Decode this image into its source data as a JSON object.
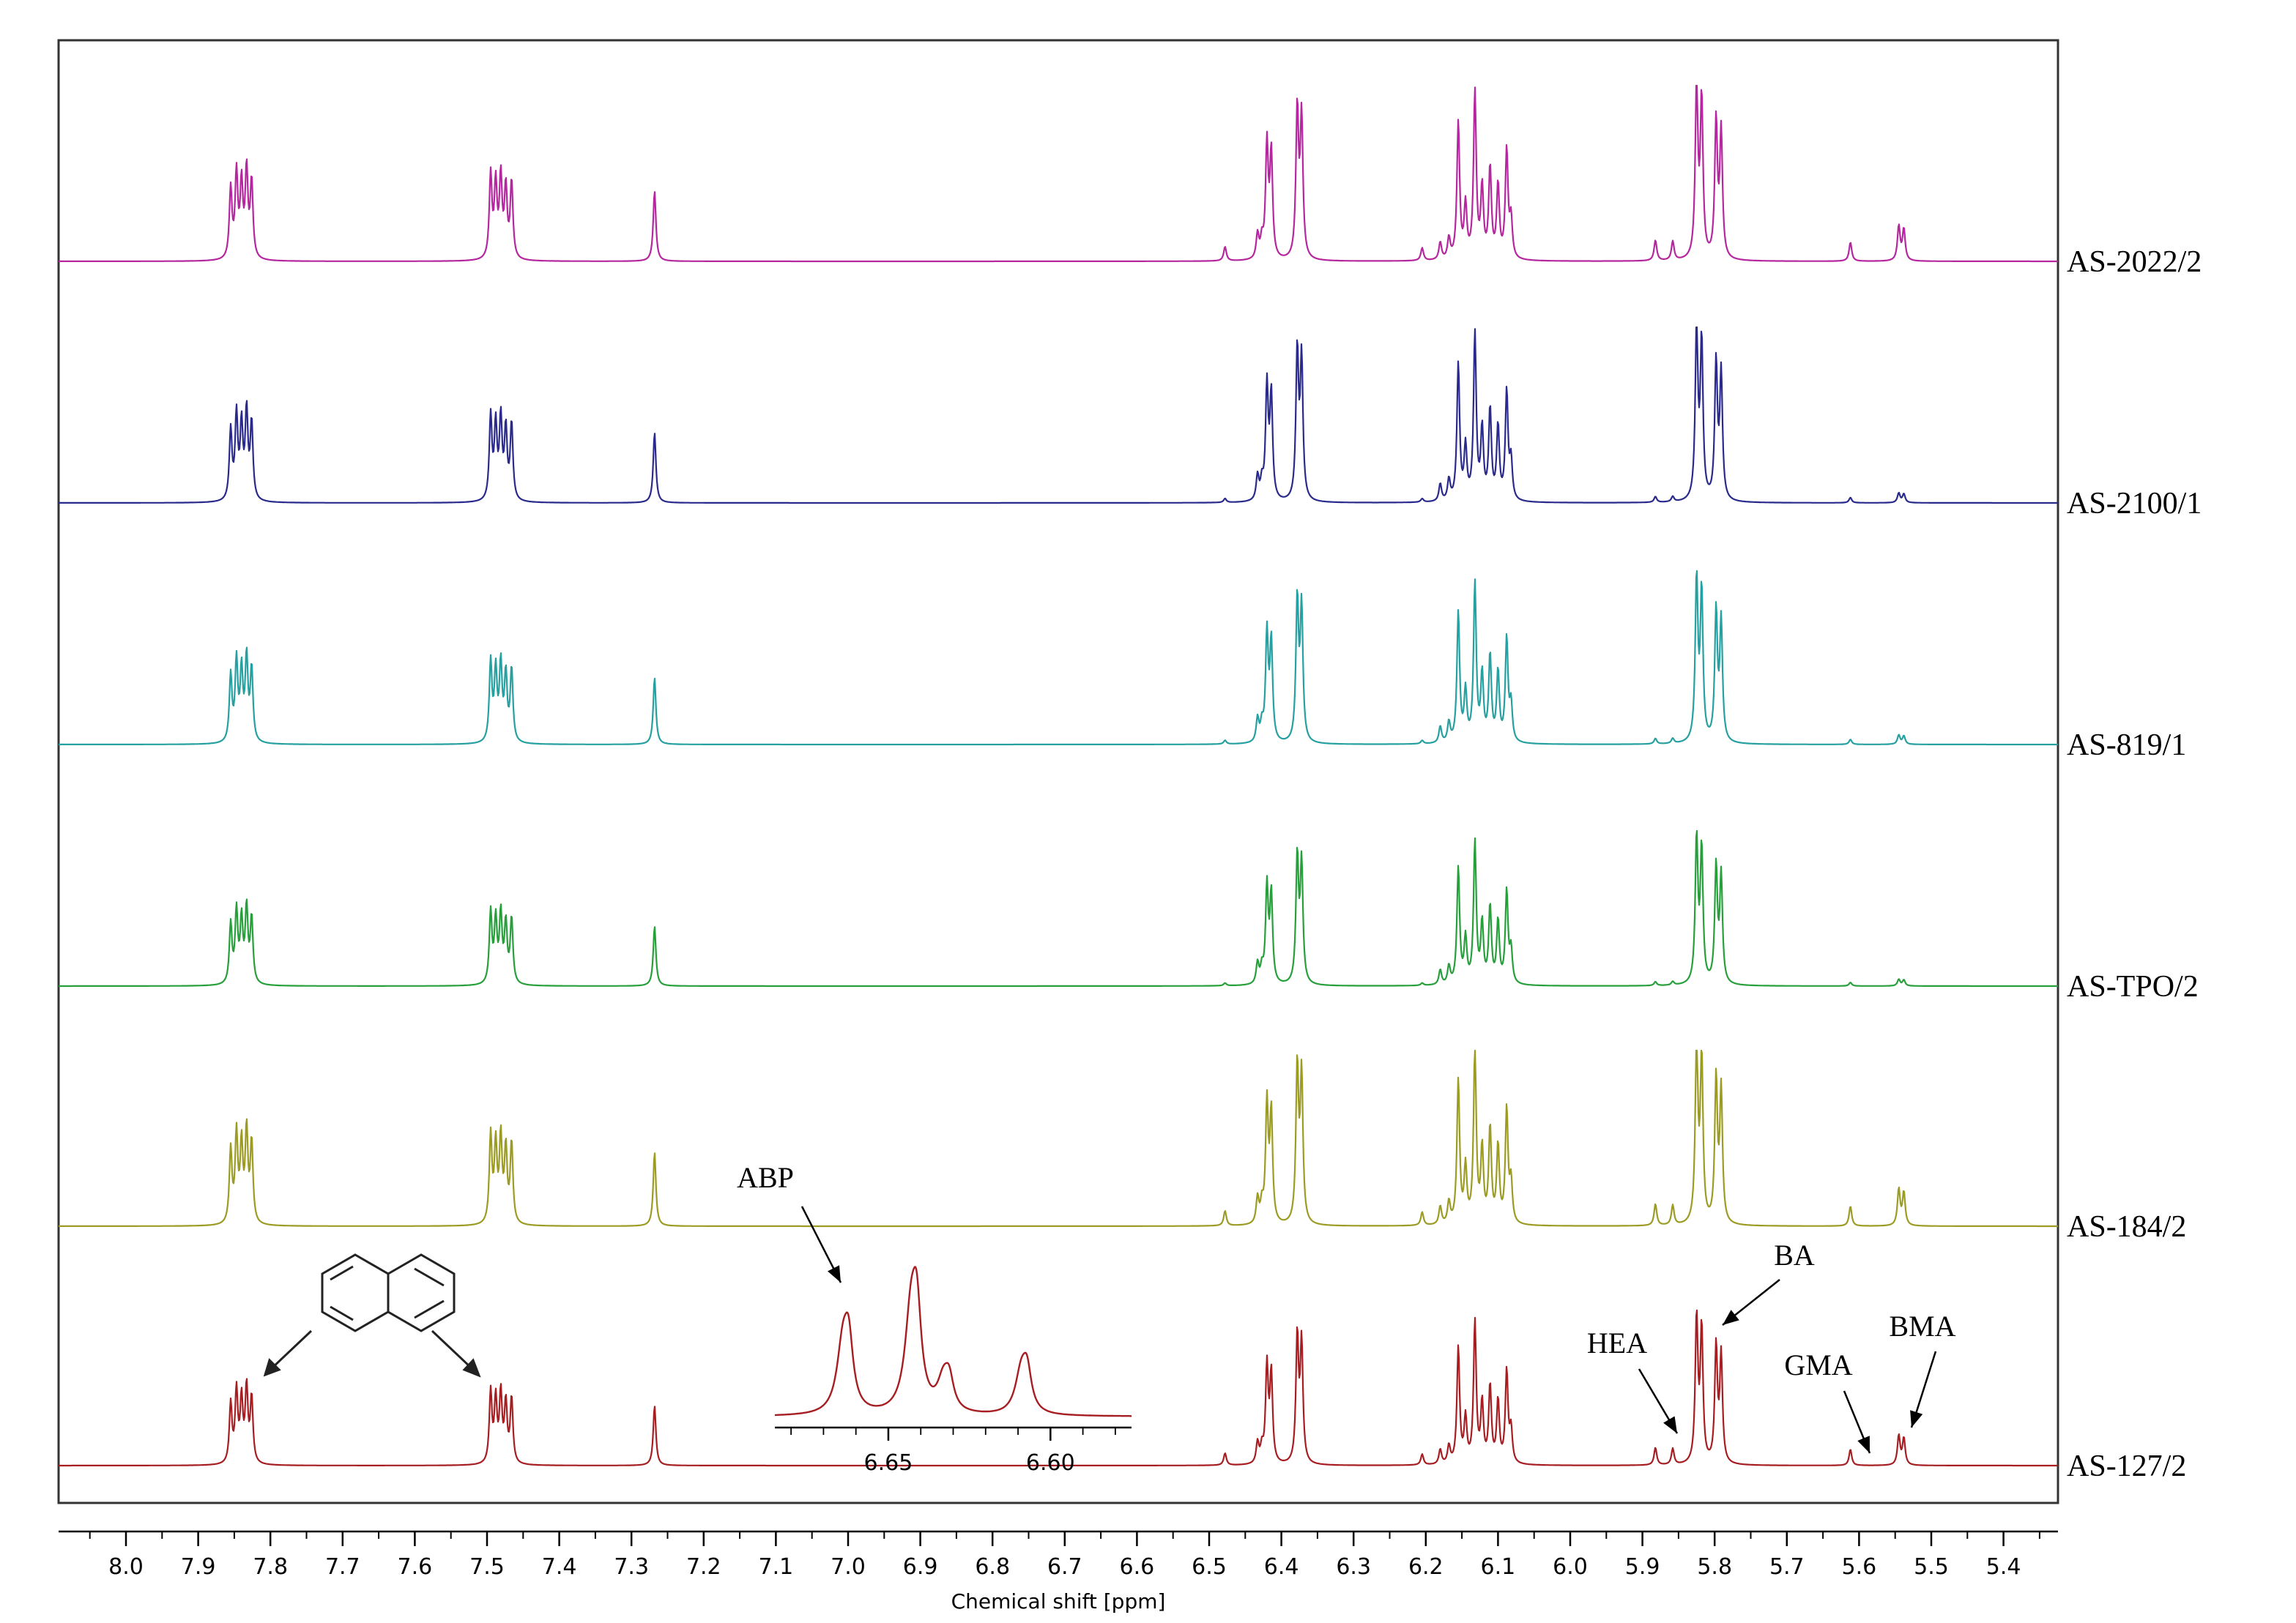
{
  "chart_data": {
    "type": "line",
    "title": "",
    "xlabel": "Chemical shift [ppm]",
    "ylabel": "",
    "xlim": [
      8.1,
      5.36
    ],
    "x_reversed": true,
    "grid": false,
    "x_ticks": [
      "8.0",
      "7.9",
      "7.8",
      "7.7",
      "7.6",
      "7.5",
      "7.4",
      "7.3",
      "7.2",
      "7.1",
      "7.0",
      "6.9",
      "6.8",
      "6.7",
      "6.6",
      "6.5",
      "6.4",
      "6.3",
      "6.2",
      "6.1",
      "6.0",
      "5.9",
      "5.8",
      "5.7",
      "5.6",
      "5.5",
      "5.4"
    ],
    "series": [
      {
        "name": "AS-2022/2",
        "color": "#b5279f",
        "scale": 1.0,
        "small_peaks": 0.9
      },
      {
        "name": "AS-2100/1",
        "color": "#2a2a8c",
        "scale": 1.0,
        "small_peaks": 0.25
      },
      {
        "name": "AS-819/1",
        "color": "#26a0a0",
        "scale": 0.95,
        "small_peaks": 0.25
      },
      {
        "name": "AS-TPO/2",
        "color": "#27a03c",
        "scale": 0.85,
        "small_peaks": 0.2
      },
      {
        "name": "AS-184/2",
        "color": "#9c9c25",
        "scale": 1.05,
        "small_peaks": 0.9
      },
      {
        "name": "AS-127/2",
        "color": "#a61e22",
        "scale": 0.85,
        "small_peaks": 0.9
      }
    ],
    "peaks": [
      {
        "ppm": 7.855,
        "h": 0.4
      },
      {
        "ppm": 7.847,
        "h": 0.48
      },
      {
        "ppm": 7.84,
        "h": 0.42
      },
      {
        "ppm": 7.833,
        "h": 0.5
      },
      {
        "ppm": 7.826,
        "h": 0.44
      },
      {
        "ppm": 7.495,
        "h": 0.48
      },
      {
        "ppm": 7.488,
        "h": 0.42
      },
      {
        "ppm": 7.481,
        "h": 0.46
      },
      {
        "ppm": 7.474,
        "h": 0.4
      },
      {
        "ppm": 7.466,
        "h": 0.44
      },
      {
        "ppm": 7.268,
        "h": 0.4
      },
      {
        "ppm": 6.478,
        "h": 0.09,
        "small": true
      },
      {
        "ppm": 6.433,
        "h": 0.14
      },
      {
        "ppm": 6.427,
        "h": 0.1
      },
      {
        "ppm": 6.42,
        "h": 0.65
      },
      {
        "ppm": 6.414,
        "h": 0.6
      },
      {
        "ppm": 6.378,
        "h": 0.85
      },
      {
        "ppm": 6.372,
        "h": 0.8
      },
      {
        "ppm": 6.205,
        "h": 0.08,
        "small": true
      },
      {
        "ppm": 6.18,
        "h": 0.1
      },
      {
        "ppm": 6.168,
        "h": 0.12
      },
      {
        "ppm": 6.155,
        "h": 0.78
      },
      {
        "ppm": 6.145,
        "h": 0.3
      },
      {
        "ppm": 6.132,
        "h": 0.95
      },
      {
        "ppm": 6.122,
        "h": 0.4
      },
      {
        "ppm": 6.111,
        "h": 0.52
      },
      {
        "ppm": 6.1,
        "h": 0.42
      },
      {
        "ppm": 6.088,
        "h": 0.62
      },
      {
        "ppm": 6.082,
        "h": 0.22
      },
      {
        "ppm": 5.882,
        "h": 0.13,
        "small": true
      },
      {
        "ppm": 5.858,
        "h": 0.12,
        "small": true
      },
      {
        "ppm": 5.825,
        "h": 0.98
      },
      {
        "ppm": 5.818,
        "h": 0.9
      },
      {
        "ppm": 5.798,
        "h": 0.78
      },
      {
        "ppm": 5.791,
        "h": 0.72
      },
      {
        "ppm": 5.612,
        "h": 0.12,
        "small": true
      },
      {
        "ppm": 5.545,
        "h": 0.22,
        "small": true
      },
      {
        "ppm": 5.538,
        "h": 0.2,
        "small": true
      }
    ],
    "annotations": [
      {
        "text": "HEA",
        "target_ppm": 5.88
      },
      {
        "text": "BA",
        "target_ppm": 5.8
      },
      {
        "text": "GMA",
        "target_ppm": 5.61
      },
      {
        "text": "BMA",
        "target_ppm": 5.54
      },
      {
        "text": "ABP",
        "target": "inset"
      }
    ],
    "inset": {
      "label": "ABP",
      "x_ticks": [
        "6.65",
        "6.60"
      ],
      "peaks": [
        {
          "ppm": 6.664,
          "h": 0.7
        },
        {
          "ppm": 6.643,
          "h": 1.0
        },
        {
          "ppm": 6.633,
          "h": 0.32
        },
        {
          "ppm": 6.609,
          "h": 0.43
        }
      ]
    }
  }
}
